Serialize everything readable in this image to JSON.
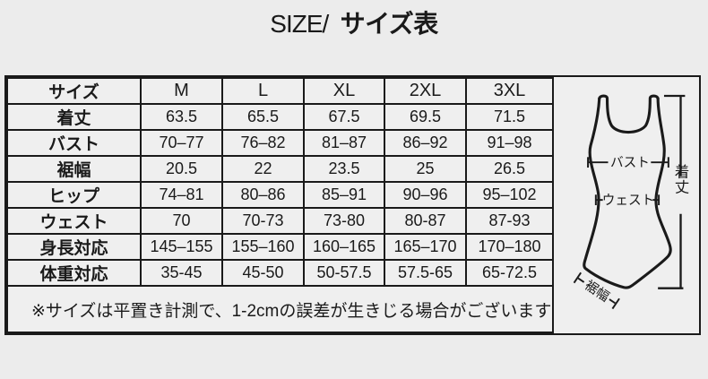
{
  "header": {
    "title_en": "SIZE/",
    "title_ja": "サイズ表"
  },
  "chart_data": {
    "type": "table",
    "title": "SIZE/ サイズ表",
    "columns": [
      "サイズ",
      "M",
      "L",
      "XL",
      "2XL",
      "3XL"
    ],
    "rows": [
      {
        "label": "着丈",
        "values": [
          "63.5",
          "65.5",
          "67.5",
          "69.5",
          "71.5"
        ]
      },
      {
        "label": "バスト",
        "values": [
          "70–77",
          "76–82",
          "81–87",
          "86–92",
          "91–98"
        ]
      },
      {
        "label": "裾幅",
        "values": [
          "20.5",
          "22",
          "23.5",
          "25",
          "26.5"
        ]
      },
      {
        "label": "ヒップ",
        "values": [
          "74–81",
          "80–86",
          "85–91",
          "90–96",
          "95–102"
        ]
      },
      {
        "label": "ウェスト",
        "values": [
          "70",
          "70-73",
          "73-80",
          "80-87",
          "87-93"
        ]
      },
      {
        "label": "身長対応",
        "values": [
          "145–155",
          "155–160",
          "160–165",
          "165–170",
          "170–180"
        ]
      },
      {
        "label": "体重対応",
        "values": [
          "35-45",
          "45-50",
          "50-57.5",
          "57.5-65",
          "65-72.5"
        ]
      }
    ],
    "footnote": "※サイズは平置き計測で、1-2cmの誤差が生きじる場合がございます",
    "diagram_labels": {
      "bust": "バスト",
      "waist": "ウェスト",
      "length": "着丈",
      "hem": "裾幅"
    },
    "unit_note": "",
    "layout": {
      "grid": true,
      "legend": "none"
    }
  },
  "colors": {
    "background": "#ececec",
    "table_fill": "#efefef",
    "line": "#1a1a1a",
    "text": "#1a1a1a"
  }
}
